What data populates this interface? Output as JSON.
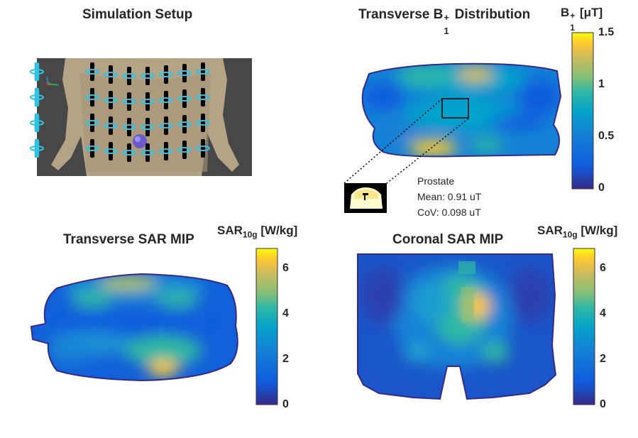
{
  "panels": {
    "setup": {
      "title": "Simulation Setup"
    },
    "b1": {
      "title_main": "Transverse B",
      "title_sup": "+",
      "title_sub": "1",
      "title_rest": " Distribution",
      "unit_main": "B",
      "unit_sup": "+",
      "unit_sub": "1",
      "unit_rest": " [μT]"
    },
    "sar_t": {
      "title": "Transverse SAR MIP",
      "unit_main": "SAR",
      "unit_sub": "10g",
      "unit_rest": " [W/kg]"
    },
    "sar_c": {
      "title": "Coronal SAR MIP",
      "unit_main": "SAR",
      "unit_sub": "10g",
      "unit_rest": " [W/kg]"
    }
  },
  "annotation": {
    "label": "Prostate",
    "mean": "Mean: 0.91 uT",
    "cov": "CoV: 0.098 uT"
  },
  "colors": {
    "parula_low": "#352a87",
    "parula_blue": "#0f5cdd",
    "parula_cyan": "#1ba5c9",
    "parula_green": "#65be87",
    "parula_orange": "#e7b93a",
    "parula_high": "#f9fb0e"
  },
  "chart_data": [
    {
      "type": "heatmap",
      "panel": "Transverse B1+ Distribution",
      "colorbar_label": "B1+ [μT]",
      "colorbar_range": [
        0,
        1.5
      ],
      "colorbar_ticks": [
        "0",
        "0.5",
        "1",
        "1.5"
      ],
      "roi_mean": 0.91,
      "roi_cov": 0.098
    },
    {
      "type": "heatmap",
      "panel": "Transverse SAR MIP",
      "colorbar_label": "SAR10g [W/kg]",
      "colorbar_range": [
        0,
        6.8
      ],
      "colorbar_ticks": [
        "0",
        "2",
        "4",
        "6"
      ]
    },
    {
      "type": "heatmap",
      "panel": "Coronal SAR MIP",
      "colorbar_label": "SAR10g [W/kg]",
      "colorbar_range": [
        0,
        6.8
      ],
      "colorbar_ticks": [
        "0",
        "2",
        "4",
        "6"
      ]
    }
  ]
}
